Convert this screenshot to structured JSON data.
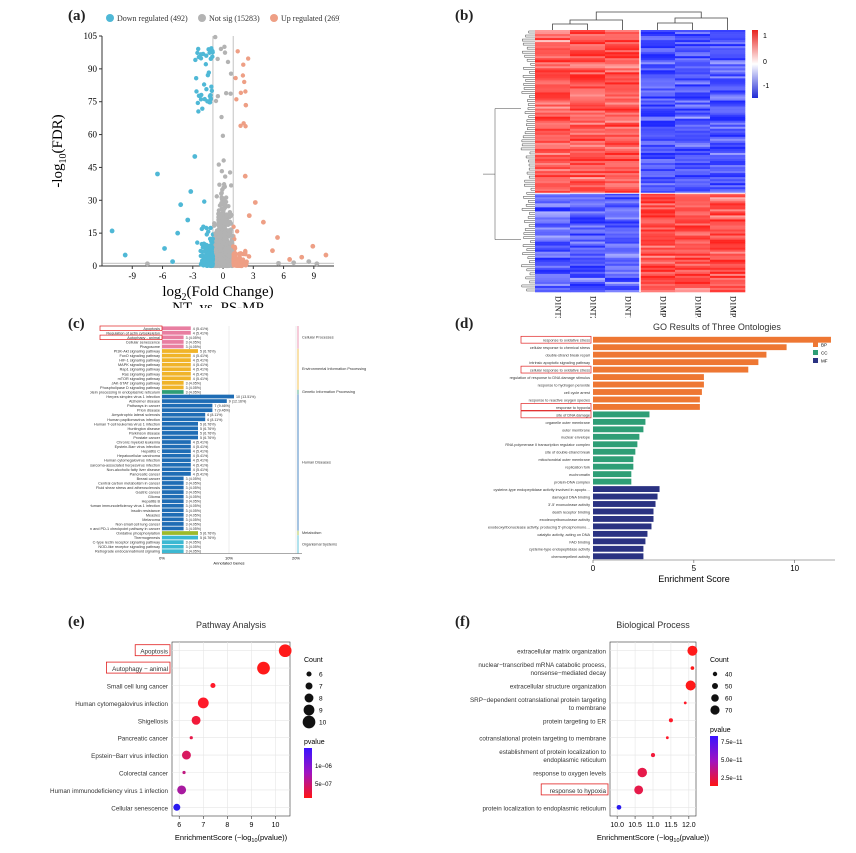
{
  "panels": {
    "a": "(a)",
    "b": "(b)",
    "c": "(c)",
    "d": "(d)",
    "e": "(e)",
    "f": "(f)"
  },
  "chart_data": [
    {
      "id": "a",
      "type": "scatter",
      "ylabel_base": "-log",
      "ylabel_sub": "10",
      "ylabel_rest": "(FDR)",
      "xlabel_base": "log",
      "xlabel_sub": "2",
      "xlabel_rest": "(Fold Change)",
      "xlabel2": "NT_vs_PS-MP",
      "xlim": [
        -12,
        11
      ],
      "ylim": [
        0,
        105
      ],
      "xticks": [
        -9,
        -6,
        -3,
        0,
        3,
        6,
        9
      ],
      "yticks": [
        0,
        15,
        30,
        45,
        60,
        75,
        90,
        105
      ],
      "legend": [
        {
          "label": "Down regulated (492)",
          "color": "#4fb8d6"
        },
        {
          "label": "Not sig (15283)",
          "color": "#b3b3b3"
        },
        {
          "label": "Up regulated (269)",
          "color": "#ee9f85"
        }
      ],
      "thresholds_x": [
        -1,
        1
      ],
      "outliers_down": [
        [
          -11,
          16
        ],
        [
          -9.7,
          5
        ],
        [
          -6.5,
          42
        ],
        [
          -5.8,
          8
        ],
        [
          -5,
          2
        ],
        [
          -4.5,
          15
        ],
        [
          -3.2,
          34
        ],
        [
          -2.8,
          50
        ],
        [
          -3.5,
          21
        ],
        [
          -4.2,
          28
        ]
      ],
      "outliers_up": [
        [
          10.2,
          5
        ],
        [
          8.9,
          9
        ],
        [
          7.8,
          4
        ],
        [
          6.6,
          3
        ],
        [
          5.4,
          13
        ],
        [
          4.9,
          7
        ],
        [
          3.2,
          29
        ],
        [
          2.6,
          23
        ],
        [
          4,
          20
        ],
        [
          2.2,
          41
        ]
      ],
      "outliers_ns": [
        [
          7,
          1.5
        ],
        [
          8.5,
          2
        ],
        [
          -7.5,
          1
        ],
        [
          9.3,
          1
        ],
        [
          5.5,
          1.2
        ]
      ]
    },
    {
      "id": "b",
      "type": "heatmap",
      "columns": [
        "D1NT3",
        "D1NT2",
        "D1NT1",
        "D1MP1",
        "D1MP3",
        "D1MP2"
      ],
      "colorbar_ticks": [
        "1",
        "0",
        "-1"
      ],
      "colors": {
        "high": "#e8231f",
        "mid": "#ffffff",
        "low": "#1f2ad6"
      }
    },
    {
      "id": "c",
      "type": "bar",
      "xlabel": "Annotated Genes",
      "xticks": [
        "0%",
        "10%",
        "20%"
      ],
      "highlight": [
        "Apoptosis",
        "Autophagy - animal"
      ],
      "categories": [
        {
          "name": "Cellular Processes",
          "color": "#e87ea1",
          "items": [
            {
              "label": "Apoptosis",
              "value": 4,
              "pct": "4 (5.41%)"
            },
            {
              "label": "Regulation of actin cytoskeleton",
              "value": 4,
              "pct": "4 (5.41%)"
            },
            {
              "label": "Autophagy - animal",
              "value": 3,
              "pct": "3 (4.05%)"
            },
            {
              "label": "Cellular senescence",
              "value": 3,
              "pct": "3 (4.05%)"
            },
            {
              "label": "Phagosome",
              "value": 3,
              "pct": "3 (4.05%)"
            }
          ]
        },
        {
          "name": "Environmental Information Processing",
          "color": "#f0b429",
          "items": [
            {
              "label": "PI3K-Akt signaling pathway",
              "value": 5,
              "pct": "5 (6.76%)"
            },
            {
              "label": "FoxO signaling pathway",
              "value": 4,
              "pct": "4 (5.41%)"
            },
            {
              "label": "HIF-1 signaling pathway",
              "value": 4,
              "pct": "4 (5.41%)"
            },
            {
              "label": "MAPK signaling pathway",
              "value": 4,
              "pct": "4 (5.41%)"
            },
            {
              "label": "Rap1 signaling pathway",
              "value": 4,
              "pct": "4 (5.41%)"
            },
            {
              "label": "Ras signaling pathway",
              "value": 4,
              "pct": "4 (5.41%)"
            },
            {
              "label": "mTOR signaling pathway",
              "value": 4,
              "pct": "4 (5.41%)"
            },
            {
              "label": "JAK-STAT signaling pathway",
              "value": 3,
              "pct": "3 (4.05%)"
            },
            {
              "label": "Phospholipase D signaling pathway",
              "value": 3,
              "pct": "3 (4.05%)"
            }
          ]
        },
        {
          "name": "Genetic Information Processing",
          "color": "#2e9e76",
          "items": [
            {
              "label": "Protein processing in endoplasmic reticulum",
              "value": 3,
              "pct": "3 (4.05%)"
            }
          ]
        },
        {
          "name": "Human Diseases",
          "color": "#1f6db5",
          "items": [
            {
              "label": "Herpes simplex virus 1 infection",
              "value": 10,
              "pct": "10 (13.51%)"
            },
            {
              "label": "Alzheimer disease",
              "value": 9,
              "pct": "9 (12.16%)"
            },
            {
              "label": "Pathways in cancer",
              "value": 7,
              "pct": "7 (9.46%)"
            },
            {
              "label": "Prion disease",
              "value": 7,
              "pct": "7 (9.46%)"
            },
            {
              "label": "Amyotrophic lateral sclerosis",
              "value": 6,
              "pct": "6 (8.11%)"
            },
            {
              "label": "Human papillomavirus infection",
              "value": 6,
              "pct": "6 (8.11%)"
            },
            {
              "label": "Human T-cell leukemia virus 1 infection",
              "value": 5,
              "pct": "5 (6.76%)"
            },
            {
              "label": "Huntington disease",
              "value": 5,
              "pct": "5 (6.76%)"
            },
            {
              "label": "Parkinson disease",
              "value": 5,
              "pct": "5 (6.76%)"
            },
            {
              "label": "Prostate cancer",
              "value": 5,
              "pct": "5 (6.76%)"
            },
            {
              "label": "Chronic myeloid leukemia",
              "value": 4,
              "pct": "4 (5.41%)"
            },
            {
              "label": "Epstein-Barr virus infection",
              "value": 4,
              "pct": "4 (5.41%)"
            },
            {
              "label": "Hepatitis C",
              "value": 4,
              "pct": "4 (5.41%)"
            },
            {
              "label": "Hepatocellular carcinoma",
              "value": 4,
              "pct": "4 (5.41%)"
            },
            {
              "label": "Human cytomegalovirus infection",
              "value": 4,
              "pct": "4 (5.41%)"
            },
            {
              "label": "Kaposi sarcoma-associated herpesvirus infection",
              "value": 4,
              "pct": "4 (5.41%)"
            },
            {
              "label": "Non-alcoholic fatty liver disease",
              "value": 4,
              "pct": "4 (5.41%)"
            },
            {
              "label": "Pancreatic cancer",
              "value": 4,
              "pct": "4 (5.41%)"
            },
            {
              "label": "Breast cancer",
              "value": 3,
              "pct": "3 (4.05%)"
            },
            {
              "label": "Central carbon metabolism in cancer",
              "value": 3,
              "pct": "3 (4.05%)"
            },
            {
              "label": "Fluid shear stress and atherosclerosis",
              "value": 3,
              "pct": "3 (4.05%)"
            },
            {
              "label": "Gastric cancer",
              "value": 3,
              "pct": "3 (4.05%)"
            },
            {
              "label": "Glioma",
              "value": 3,
              "pct": "3 (4.05%)"
            },
            {
              "label": "Hepatitis B",
              "value": 3,
              "pct": "3 (4.05%)"
            },
            {
              "label": "Human immunodeficiency virus 1 infection",
              "value": 3,
              "pct": "3 (4.05%)"
            },
            {
              "label": "Insulin resistance",
              "value": 3,
              "pct": "3 (4.05%)"
            },
            {
              "label": "Measles",
              "value": 3,
              "pct": "3 (4.05%)"
            },
            {
              "label": "Melanoma",
              "value": 3,
              "pct": "3 (4.05%)"
            },
            {
              "label": "Non-small cell lung cancer",
              "value": 3,
              "pct": "3 (4.05%)"
            },
            {
              "label": "PD-L1 expression and PD-1 checkpoint pathway in cancer",
              "value": 3,
              "pct": "3 (4.05%)"
            }
          ]
        },
        {
          "name": "Metabolism",
          "color": "#9dba2a",
          "items": [
            {
              "label": "Oxidative phosphorylation",
              "value": 5,
              "pct": "5 (6.76%)"
            }
          ]
        },
        {
          "name": "Organismal Systems",
          "color": "#3cb8d2",
          "items": [
            {
              "label": "Thermogenesis",
              "value": 5,
              "pct": "5 (6.76%)"
            },
            {
              "label": "C-type lectin receptor signaling pathway",
              "value": 3,
              "pct": "3 (4.05%)"
            },
            {
              "label": "NOD-like receptor signaling pathway",
              "value": 3,
              "pct": "3 (4.05%)"
            },
            {
              "label": "Retrograde endocannabinoid signaling",
              "value": 3,
              "pct": "3 (4.05%)"
            }
          ]
        }
      ]
    },
    {
      "id": "d",
      "type": "bar",
      "title": "GO Results of Three Ontologies",
      "xlabel": "Enrichment Score",
      "xticks": [
        0,
        5,
        10
      ],
      "xlim": [
        0,
        12
      ],
      "legend": [
        {
          "label": "BP",
          "color": "#ee7733"
        },
        {
          "label": "CC",
          "color": "#2e9e76"
        },
        {
          "label": "MF",
          "color": "#2a3282"
        }
      ],
      "highlight": [
        "response to oxidative stress",
        "cellular response to oxidative stress",
        "response to hypoxia",
        "site of DNA damage"
      ],
      "bars": [
        {
          "label": "response to oxidative stress",
          "value": 11.8,
          "group": "BP"
        },
        {
          "label": "cellular response to chemical stress",
          "value": 9.6,
          "group": "BP"
        },
        {
          "label": "double-strand break repair",
          "value": 8.6,
          "group": "BP"
        },
        {
          "label": "intrinsic apoptotic signaling pathway",
          "value": 8.2,
          "group": "BP"
        },
        {
          "label": "cellular response to oxidative stress",
          "value": 7.7,
          "group": "BP"
        },
        {
          "label": "regulation of response to DNA damage stimulus",
          "value": 5.5,
          "group": "BP"
        },
        {
          "label": "response to hydrogen peroxide",
          "value": 5.5,
          "group": "BP"
        },
        {
          "label": "cell cycle arrest",
          "value": 5.4,
          "group": "BP"
        },
        {
          "label": "response to reactive oxygen species",
          "value": 5.3,
          "group": "BP"
        },
        {
          "label": "response to hypoxia",
          "value": 5.3,
          "group": "BP"
        },
        {
          "label": "site of DNA damage",
          "value": 2.8,
          "group": "CC"
        },
        {
          "label": "organelle outer membrane",
          "value": 2.6,
          "group": "CC"
        },
        {
          "label": "outer membrane",
          "value": 2.5,
          "group": "CC"
        },
        {
          "label": "nuclear envelope",
          "value": 2.3,
          "group": "CC"
        },
        {
          "label": "RNA polymerase II transcription regulator complex",
          "value": 2.2,
          "group": "CC"
        },
        {
          "label": "site of double-strand break",
          "value": 2.1,
          "group": "CC"
        },
        {
          "label": "mitochondrial outer membrane",
          "value": 2,
          "group": "CC"
        },
        {
          "label": "replication fork",
          "value": 2,
          "group": "CC"
        },
        {
          "label": "euchromatin",
          "value": 1.9,
          "group": "CC"
        },
        {
          "label": "protein-DNA complex",
          "value": 1.9,
          "group": "CC"
        },
        {
          "label": "cysteine-type endopeptidase activity involved in apoptotic process",
          "value": 3.3,
          "group": "MF"
        },
        {
          "label": "damaged DNA binding",
          "value": 3.2,
          "group": "MF"
        },
        {
          "label": "3'-5' exonuclease activity",
          "value": 3.1,
          "group": "MF"
        },
        {
          "label": "death receptor binding",
          "value": 3,
          "group": "MF"
        },
        {
          "label": "exodeoxyribonuclease activity",
          "value": 3,
          "group": "MF"
        },
        {
          "label": "exodeoxyribonuclease activity, producing 5'-phosphomonoesters",
          "value": 2.9,
          "group": "MF"
        },
        {
          "label": "catalytic activity, acting on DNA",
          "value": 2.7,
          "group": "MF"
        },
        {
          "label": "FAD binding",
          "value": 2.6,
          "group": "MF"
        },
        {
          "label": "cysteine-type endopeptidase activity",
          "value": 2.5,
          "group": "MF"
        },
        {
          "label": "chemorepellent activity",
          "value": 2.5,
          "group": "MF"
        }
      ]
    },
    {
      "id": "e",
      "type": "scatter",
      "title": "Pathway Analysis",
      "xlabel": "EnrichmentScore (−log",
      "xlabel_sub": "10",
      "xlabel_rest": "(pvalue))",
      "xticks": [
        6,
        7,
        8,
        9,
        10
      ],
      "xlim": [
        5.7,
        10.6
      ],
      "highlight": [
        "Apoptosis",
        "Autophagy − animal"
      ],
      "size_legend_title": "Count",
      "size_legend": [
        6,
        7,
        8,
        9,
        10
      ],
      "color_legend_title": "pvalue",
      "color_legend_ticks": [
        "1e−06",
        "5e−07"
      ],
      "points": [
        {
          "label": "Apoptosis",
          "x": 10.4,
          "count": 10,
          "color": "#ff1a1a"
        },
        {
          "label": "Autophagy − animal",
          "x": 9.5,
          "count": 10,
          "color": "#ff1a1a"
        },
        {
          "label": "Small cell lung cancer",
          "x": 7.4,
          "count": 6,
          "color": "#ff1a2a"
        },
        {
          "label": "Human cytomegalovirus infection",
          "x": 7,
          "count": 9,
          "color": "#ff1a2a"
        },
        {
          "label": "Shigellosis",
          "x": 6.7,
          "count": 8,
          "color": "#f21a3a"
        },
        {
          "label": "Pancreatic cancer",
          "x": 6.5,
          "count": 5,
          "color": "#e61a4a"
        },
        {
          "label": "Epstein−Barr virus infection",
          "x": 6.3,
          "count": 8,
          "color": "#d81a60"
        },
        {
          "label": "Colorectal cancer",
          "x": 6.2,
          "count": 5,
          "color": "#c01a80"
        },
        {
          "label": "Human immunodeficiency virus 1 infection",
          "x": 6.1,
          "count": 8,
          "color": "#a81aa0"
        },
        {
          "label": "Cellular senescence",
          "x": 5.9,
          "count": 7,
          "color": "#2a1af0"
        }
      ]
    },
    {
      "id": "f",
      "type": "scatter",
      "title": "Biological Process",
      "xlabel": "EnrichmentScore (−log",
      "xlabel_sub": "10",
      "xlabel_rest": "(pvalue))",
      "xticks": [
        "10.0",
        "10.5",
        "11.0",
        "11.5",
        "12.0"
      ],
      "xlim": [
        9.8,
        12.2
      ],
      "highlight": [
        "response to hypoxia"
      ],
      "size_legend_title": "Count",
      "size_legend": [
        40,
        50,
        60,
        70
      ],
      "color_legend_title": "pvalue",
      "color_legend_ticks": [
        "7.5e−11",
        "5.0e−11",
        "2.5e−11"
      ],
      "points": [
        {
          "label": "extracellular matrix organization",
          "x": 12.1,
          "count": 75,
          "color": "#ff1a1a"
        },
        {
          "label": "nuclear−transcribed mRNA catabolic process, nonsense−mediated decay",
          "x": 12.1,
          "count": 35,
          "color": "#ff1a1a"
        },
        {
          "label": "extracellular structure organization",
          "x": 12.05,
          "count": 75,
          "color": "#ff1a1a"
        },
        {
          "label": "SRP−dependent cotranslational protein targeting to membrane",
          "x": 11.9,
          "count": 30,
          "color": "#ff1a2a"
        },
        {
          "label": "protein targeting to ER",
          "x": 11.5,
          "count": 38,
          "color": "#ff1a2a"
        },
        {
          "label": "cotranslational protein targeting to membrane",
          "x": 11.4,
          "count": 30,
          "color": "#ff1a2a"
        },
        {
          "label": "establishment of protein localization to endoplasmic reticulum",
          "x": 11,
          "count": 38,
          "color": "#f21a3a"
        },
        {
          "label": "response to oxygen levels",
          "x": 10.7,
          "count": 72,
          "color": "#e61a4a"
        },
        {
          "label": "response to hypoxia",
          "x": 10.6,
          "count": 68,
          "color": "#e61a4a"
        },
        {
          "label": "protein localization to endoplasmic reticulum",
          "x": 10.05,
          "count": 42,
          "color": "#2a1af0"
        }
      ]
    }
  ]
}
